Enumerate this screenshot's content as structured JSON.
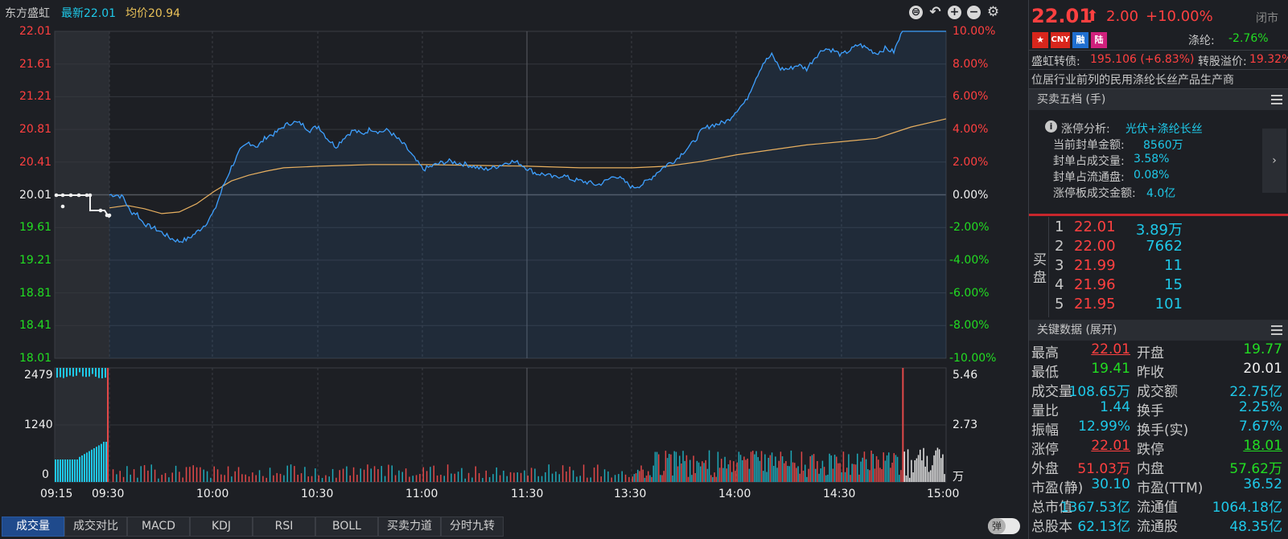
{
  "header": {
    "stock_name": "东方盛虹",
    "latest": "最新22.01",
    "avg": "均价20.94"
  },
  "price_axis_labels": [
    "22.01",
    "21.61",
    "21.21",
    "20.81",
    "20.41",
    "20.01",
    "19.61",
    "19.21",
    "18.81",
    "18.41",
    "18.01"
  ],
  "pct_axis_labels": [
    "10.00%",
    "8.00%",
    "6.00%",
    "4.00%",
    "2.00%",
    "0.00%",
    "-2.00%",
    "-4.00%",
    "-6.00%",
    "-8.00%",
    "-10.00%"
  ],
  "volume_axis_left": [
    "2479",
    "1240",
    "0"
  ],
  "volume_axis_right": [
    "5.46",
    "2.73",
    "万"
  ],
  "time_labels": [
    "09:15",
    "09:30",
    "10:00",
    "10:30",
    "11:00",
    "11:30",
    "13:30",
    "14:00",
    "14:30",
    "15:00"
  ],
  "tabs": [
    "成交量",
    "成交对比",
    "MACD",
    "KDJ",
    "RSI",
    "BOLL",
    "买卖力道",
    "分时九转"
  ],
  "toggle_label": "弹",
  "quote": {
    "price": "22.01",
    "change": "2.00",
    "change_pct": "+10.00%",
    "status": "闭市",
    "badge_cny": "CNY",
    "badge_rong": "融",
    "badge_lu": "陆",
    "related_label": "涤纶:",
    "related_value": "-2.76%",
    "cb_label": "盛虹转债:",
    "cb_value": "195.106 (+6.83%)",
    "premium_label": "转股溢价:",
    "premium_value": "19.32%",
    "description": "位居行业前列的民用涤纶长丝产品生产商"
  },
  "orderbook": {
    "title": "买卖五档 (手)",
    "analysis_label": "涨停分析:",
    "analysis_value": "光伏+涤纶长丝",
    "rows": [
      {
        "label": "当前封单金额:",
        "value": "8560万"
      },
      {
        "label": "封单占成交量:",
        "value": "3.58%"
      },
      {
        "label": "封单占流通盘:",
        "value": "0.08%"
      },
      {
        "label": "涨停板成交金额:",
        "value": "4.0亿"
      }
    ],
    "side_label_1": "买",
    "side_label_2": "盘",
    "bids": [
      {
        "level": "1",
        "price": "22.01",
        "volume": "3.89万"
      },
      {
        "level": "2",
        "price": "22.00",
        "volume": "7662"
      },
      {
        "level": "3",
        "price": "21.99",
        "volume": "11"
      },
      {
        "level": "4",
        "price": "21.96",
        "volume": "15"
      },
      {
        "level": "5",
        "price": "21.95",
        "volume": "101"
      }
    ]
  },
  "keydata": {
    "title": "关键数据 (展开)",
    "rows": [
      [
        {
          "k": "最高",
          "v": "22.01",
          "c": "red"
        },
        {
          "k": "开盘",
          "v": "19.77",
          "c": "green"
        }
      ],
      [
        {
          "k": "最低",
          "v": "19.41",
          "c": "green"
        },
        {
          "k": "昨收",
          "v": "20.01",
          "c": "white"
        }
      ],
      [
        {
          "k": "成交量",
          "v": "108.65万",
          "c": "cyan"
        },
        {
          "k": "成交额",
          "v": "22.75亿",
          "c": "cyan"
        }
      ],
      [
        {
          "k": "量比",
          "v": "1.44",
          "c": "cyan"
        },
        {
          "k": "换手",
          "v": "2.25%",
          "c": "cyan"
        }
      ],
      [
        {
          "k": "振幅",
          "v": "12.99%",
          "c": "cyan"
        },
        {
          "k": "换手(实)",
          "v": "7.67%",
          "c": "cyan"
        }
      ],
      [
        {
          "k": "涨停",
          "v": "22.01",
          "c": "red"
        },
        {
          "k": "跌停",
          "v": "18.01",
          "c": "green"
        }
      ],
      [
        {
          "k": "外盘",
          "v": "51.03万",
          "c": "red"
        },
        {
          "k": "内盘",
          "v": "57.62万",
          "c": "green"
        }
      ],
      [
        {
          "k": "市盈(静)",
          "v": "30.10",
          "c": "cyan"
        },
        {
          "k": "市盈(TTM)",
          "v": "36.52",
          "c": "cyan"
        }
      ],
      [
        {
          "k": "总市值",
          "v": "1367.53亿",
          "c": "cyan"
        },
        {
          "k": "流通值",
          "v": "1064.18亿",
          "c": "cyan"
        }
      ],
      [
        {
          "k": "总股本",
          "v": "62.13亿",
          "c": "cyan"
        },
        {
          "k": "流通股",
          "v": "48.35亿",
          "c": "cyan"
        }
      ]
    ]
  },
  "chart_data": {
    "type": "line",
    "prev_close": 20.01,
    "ylim": [
      18.01,
      22.01
    ],
    "price_series": [
      [
        0,
        20.01
      ],
      [
        4,
        20.01
      ],
      [
        8,
        19.98
      ],
      [
        12,
        19.8
      ],
      [
        16,
        19.78
      ],
      [
        18,
        19.7
      ],
      [
        22,
        19.63
      ],
      [
        25,
        19.61
      ],
      [
        30,
        19.55
      ],
      [
        35,
        19.48
      ],
      [
        40,
        19.44
      ],
      [
        45,
        19.47
      ],
      [
        50,
        19.55
      ],
      [
        55,
        19.65
      ],
      [
        60,
        19.8
      ],
      [
        65,
        20.1
      ],
      [
        70,
        20.35
      ],
      [
        75,
        20.55
      ],
      [
        80,
        20.65
      ],
      [
        85,
        20.6
      ],
      [
        90,
        20.72
      ],
      [
        95,
        20.76
      ],
      [
        100,
        20.85
      ],
      [
        105,
        20.9
      ],
      [
        110,
        20.88
      ],
      [
        115,
        20.8
      ],
      [
        120,
        20.85
      ],
      [
        125,
        20.7
      ],
      [
        130,
        20.6
      ],
      [
        135,
        20.72
      ],
      [
        140,
        20.8
      ],
      [
        145,
        20.75
      ],
      [
        150,
        20.82
      ],
      [
        155,
        20.78
      ],
      [
        160,
        20.8
      ],
      [
        165,
        20.7
      ],
      [
        170,
        20.6
      ],
      [
        175,
        20.45
      ],
      [
        180,
        20.32
      ],
      [
        185,
        20.36
      ],
      [
        190,
        20.4
      ],
      [
        195,
        20.42
      ],
      [
        200,
        20.4
      ],
      [
        205,
        20.38
      ],
      [
        210,
        20.35
      ],
      [
        215,
        20.32
      ],
      [
        220,
        20.34
      ],
      [
        225,
        20.38
      ],
      [
        230,
        20.42
      ],
      [
        235,
        20.4
      ],
      [
        240,
        20.33
      ],
      [
        245,
        20.27
      ],
      [
        250,
        20.26
      ],
      [
        255,
        20.22
      ],
      [
        260,
        20.25
      ],
      [
        265,
        20.2
      ],
      [
        270,
        20.18
      ],
      [
        275,
        20.16
      ],
      [
        280,
        20.13
      ],
      [
        285,
        20.18
      ],
      [
        290,
        20.25
      ],
      [
        295,
        20.18
      ],
      [
        300,
        20.1
      ],
      [
        305,
        20.13
      ],
      [
        310,
        20.2
      ],
      [
        315,
        20.3
      ],
      [
        320,
        20.38
      ],
      [
        325,
        20.44
      ],
      [
        330,
        20.55
      ],
      [
        335,
        20.65
      ],
      [
        340,
        20.8
      ],
      [
        345,
        20.86
      ],
      [
        350,
        20.88
      ],
      [
        355,
        20.92
      ],
      [
        360,
        21.05
      ],
      [
        365,
        21.15
      ],
      [
        370,
        21.4
      ],
      [
        375,
        21.62
      ],
      [
        380,
        21.72
      ],
      [
        385,
        21.55
      ],
      [
        390,
        21.55
      ],
      [
        395,
        21.6
      ],
      [
        400,
        21.55
      ],
      [
        405,
        21.7
      ],
      [
        410,
        21.8
      ],
      [
        415,
        21.78
      ],
      [
        420,
        21.72
      ],
      [
        425,
        21.78
      ],
      [
        430,
        21.85
      ],
      [
        435,
        21.8
      ],
      [
        440,
        21.74
      ],
      [
        445,
        21.8
      ],
      [
        450,
        21.76
      ],
      [
        455,
        22.01
      ],
      [
        465,
        22.01
      ],
      [
        480,
        22.01
      ]
    ],
    "avg_series": [
      [
        0,
        19.85
      ],
      [
        10,
        19.88
      ],
      [
        20,
        19.84
      ],
      [
        30,
        19.78
      ],
      [
        40,
        19.8
      ],
      [
        50,
        19.9
      ],
      [
        60,
        20.05
      ],
      [
        70,
        20.18
      ],
      [
        80,
        20.25
      ],
      [
        90,
        20.3
      ],
      [
        100,
        20.34
      ],
      [
        120,
        20.36
      ],
      [
        150,
        20.38
      ],
      [
        180,
        20.38
      ],
      [
        210,
        20.37
      ],
      [
        240,
        20.36
      ],
      [
        270,
        20.34
      ],
      [
        300,
        20.34
      ],
      [
        320,
        20.36
      ],
      [
        340,
        20.42
      ],
      [
        360,
        20.5
      ],
      [
        380,
        20.56
      ],
      [
        400,
        20.62
      ],
      [
        420,
        20.66
      ],
      [
        440,
        20.7
      ],
      [
        460,
        20.84
      ],
      [
        480,
        20.94
      ]
    ],
    "auction_points": [
      [
        0,
        20.01
      ],
      [
        4,
        20.0
      ],
      [
        8,
        20.0
      ],
      [
        12,
        19.8
      ],
      [
        16,
        19.78
      ],
      [
        19,
        19.74
      ]
    ]
  }
}
